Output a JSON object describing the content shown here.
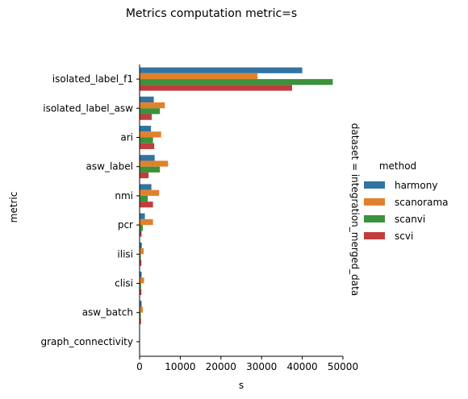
{
  "chart_data": {
    "type": "bar",
    "orientation": "horizontal",
    "title": "Metrics computation metric=s",
    "xlabel": "s",
    "ylabel": "metric",
    "facet_label": "dataset = integration_merged_data",
    "xlim": [
      0,
      50000
    ],
    "xticks": [
      0,
      10000,
      20000,
      30000,
      40000,
      50000
    ],
    "grid": false,
    "legend": {
      "title": "method",
      "placement": "right"
    },
    "categories": [
      "isolated_label_f1",
      "isolated_label_asw",
      "ari",
      "asw_label",
      "nmi",
      "pcr",
      "ilisi",
      "clisi",
      "asw_batch",
      "graph_connectivity"
    ],
    "series": [
      {
        "name": "harmony",
        "color": "#3274a1",
        "values": [
          40000,
          3500,
          2800,
          3700,
          2900,
          1300,
          550,
          500,
          500,
          60
        ]
      },
      {
        "name": "scanorama",
        "color": "#e1812c",
        "values": [
          29000,
          6200,
          5300,
          7000,
          4800,
          3300,
          1000,
          1100,
          800,
          60
        ]
      },
      {
        "name": "scanvi",
        "color": "#3a923a",
        "values": [
          47500,
          5000,
          3300,
          5000,
          2000,
          800,
          300,
          350,
          300,
          30
        ]
      },
      {
        "name": "scvi",
        "color": "#c03d3e",
        "values": [
          37500,
          3000,
          3600,
          2200,
          3300,
          500,
          450,
          450,
          350,
          30
        ]
      }
    ]
  }
}
